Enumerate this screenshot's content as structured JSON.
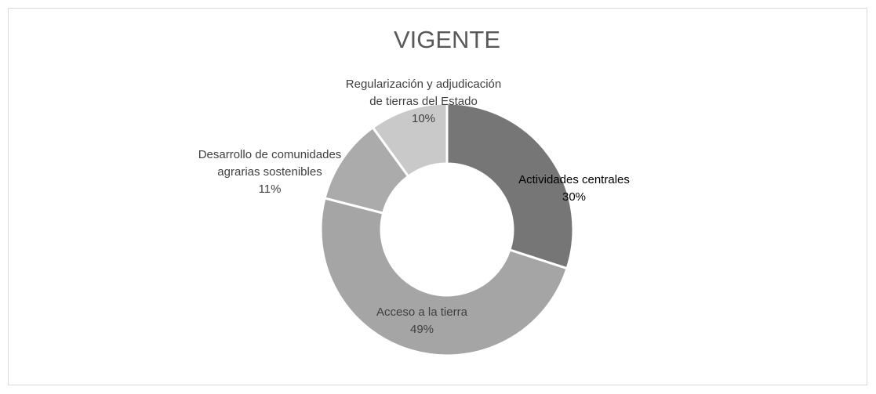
{
  "chart_data": {
    "type": "donut",
    "title": "VIGENTE",
    "categories": [
      "Actividades centrales",
      "Acceso a la tierra",
      "Desarrollo de comunidades agrarias sostenibles",
      "Regularización y adjudicación de tierras del Estado"
    ],
    "values": [
      30,
      49,
      11,
      10
    ],
    "value_labels": [
      "30%",
      "49%",
      "11%",
      "10%"
    ],
    "colors": [
      "#767676",
      "#a5a5a5",
      "#ababab",
      "#c9c9c9"
    ]
  }
}
